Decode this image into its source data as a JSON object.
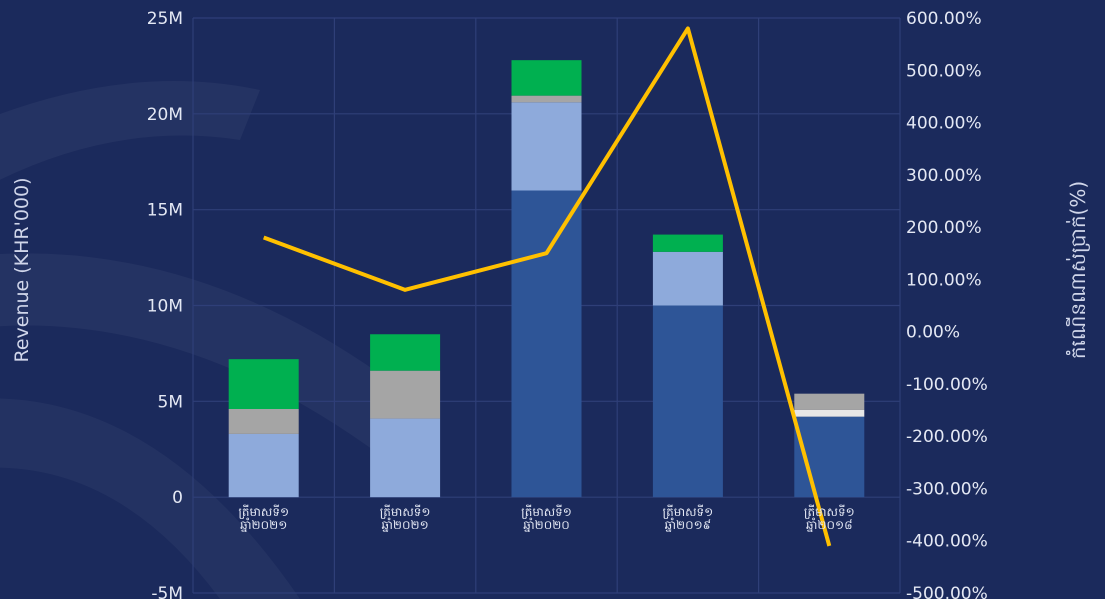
{
  "chart_data": {
    "type": "bar",
    "categories": [
      "ត្រីមាសទី១ ឆ្នាំ២០២១",
      "ត្រីមាសទី១ ឆ្នាំ២០២១",
      "ត្រីមាសទី១ ឆ្នាំ២០២០",
      "ត្រីមាសទី១ ឆ្នាំ២០១៩",
      "ត្រីមាសទី១ ឆ្នាំ២០១៨"
    ],
    "category_lines": [
      [
        "ត្រីមាសទី១",
        "ឆ្នាំ២០២១"
      ],
      [
        "ត្រីមាសទី១",
        "ឆ្នាំ២០២១"
      ],
      [
        "ត្រីមាសទី១",
        "ឆ្នាំ២០២០"
      ],
      [
        "ត្រីមាសទី១",
        "ឆ្នាំ២០១៩"
      ],
      [
        "ត្រីមាសទី១",
        "ឆ្នាំ២០១៨"
      ]
    ],
    "series": [
      {
        "values": [
          0,
          0,
          16000000,
          10000000,
          4200000
        ],
        "color": "#2e5597"
      },
      {
        "values": [
          3300000,
          4100000,
          4600000,
          2800000,
          0
        ],
        "color": "#8eaadb"
      },
      {
        "values": [
          0,
          0,
          0,
          0,
          350000
        ],
        "color": "#e6e6e6"
      },
      {
        "values": [
          1300000,
          2500000,
          350000,
          0,
          850000
        ],
        "color": "#a5a5a5"
      },
      {
        "values": [
          2600000,
          1900000,
          1850000,
          900000,
          0
        ],
        "color": "#00b050"
      }
    ],
    "line": {
      "values": [
        180,
        80,
        150,
        580,
        -410
      ],
      "color": "#ffc000",
      "axis": "right"
    },
    "ylabel": "Revenue (KHR'000)",
    "y2label": "កំណើនណាស់ប្រាក់(%)",
    "ylim": [
      -5000000,
      25000000
    ],
    "yticks": [
      -5000000,
      0,
      5000000,
      10000000,
      15000000,
      20000000,
      25000000
    ],
    "ytick_labels": [
      "-5M",
      "0",
      "5M",
      "10M",
      "15M",
      "20M",
      "25M"
    ],
    "y2lim": [
      -500,
      600
    ],
    "y2ticks": [
      -500,
      -400,
      -300,
      -200,
      -100,
      0,
      100,
      200,
      300,
      400,
      500,
      600
    ],
    "y2tick_labels": [
      "-500.00%",
      "-400.00%",
      "-300.00%",
      "-200.00%",
      "-100.00%",
      "0.00%",
      "100.00%",
      "200.00%",
      "300.00%",
      "400.00%",
      "500.00%",
      "600.00%"
    ],
    "grid": true
  }
}
